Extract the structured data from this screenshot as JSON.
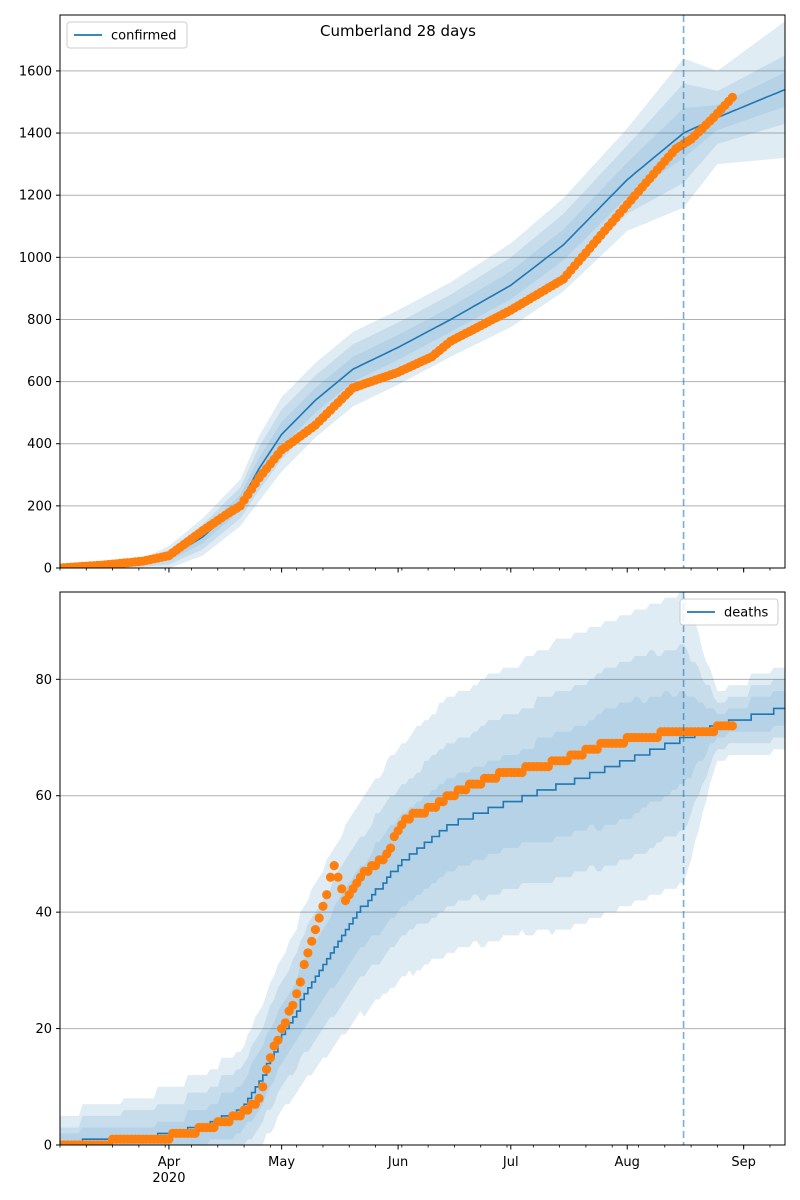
{
  "figure_title": "Cumberland 28 days",
  "colors": {
    "model_line": "#1f77b4",
    "observed_points": "#ff7f0e",
    "band": "#1f77b4",
    "grid": "#b0b0b0",
    "forecast_marker": "#1f77b4"
  },
  "x_axis": {
    "domain_start": "2020-03-03",
    "domain_end": "2020-09-12",
    "month_ticks": [
      {
        "date": "2020-04-01",
        "label": "Apr",
        "sublabel": "2020"
      },
      {
        "date": "2020-05-01",
        "label": "May",
        "sublabel": ""
      },
      {
        "date": "2020-06-01",
        "label": "Jun",
        "sublabel": ""
      },
      {
        "date": "2020-07-01",
        "label": "Jul",
        "sublabel": ""
      },
      {
        "date": "2020-08-01",
        "label": "Aug",
        "sublabel": ""
      },
      {
        "date": "2020-09-01",
        "label": "Sep",
        "sublabel": ""
      }
    ],
    "forecast_start": "2020-08-16"
  },
  "chart_data": [
    {
      "type": "line",
      "title": "Cumberland 28 days",
      "legend": "confirmed",
      "legend_position": "top-left",
      "grid": "horizontal",
      "ylim": [
        0,
        1780
      ],
      "yticks": [
        0,
        200,
        400,
        600,
        800,
        1000,
        1200,
        1400,
        1600
      ],
      "x_range": [
        "2020-03-03",
        "2020-09-12"
      ],
      "model_series": {
        "name": "confirmed",
        "x": [
          "2020-03-03",
          "2020-03-15",
          "2020-03-25",
          "2020-04-01",
          "2020-04-10",
          "2020-04-20",
          "2020-04-25",
          "2020-05-01",
          "2020-05-10",
          "2020-05-20",
          "2020-06-01",
          "2020-06-15",
          "2020-07-01",
          "2020-07-15",
          "2020-08-01",
          "2020-08-16",
          "2020-08-25",
          "2020-09-12"
        ],
        "values": [
          0,
          3,
          15,
          35,
          100,
          210,
          320,
          430,
          540,
          640,
          710,
          800,
          910,
          1040,
          1250,
          1400,
          1450,
          1540
        ],
        "band_half_widths": [
          [
            1,
            2,
            3
          ],
          [
            2,
            4,
            6
          ],
          [
            5,
            10,
            15
          ],
          [
            12,
            24,
            36
          ],
          [
            20,
            40,
            60
          ],
          [
            25,
            50,
            75
          ],
          [
            35,
            70,
            105
          ],
          [
            40,
            80,
            120
          ],
          [
            40,
            80,
            120
          ],
          [
            40,
            80,
            120
          ],
          [
            40,
            80,
            120
          ],
          [
            40,
            80,
            120
          ],
          [
            45,
            90,
            135
          ],
          [
            50,
            100,
            150
          ],
          [
            55,
            110,
            165
          ],
          [
            80,
            160,
            240
          ],
          [
            40,
            85,
            150
          ],
          [
            55,
            110,
            220
          ]
        ]
      },
      "observed": {
        "x": [
          "2020-03-03",
          "2020-03-15",
          "2020-03-25",
          "2020-04-01",
          "2020-04-10",
          "2020-04-16",
          "2020-04-20",
          "2020-04-25",
          "2020-05-01",
          "2020-05-10",
          "2020-05-15",
          "2020-05-20",
          "2020-06-01",
          "2020-06-10",
          "2020-06-15",
          "2020-07-01",
          "2020-07-15",
          "2020-08-01",
          "2020-08-06",
          "2020-08-14",
          "2020-08-18",
          "2020-08-24",
          "2020-08-29"
        ],
        "values": [
          0,
          10,
          22,
          40,
          120,
          170,
          200,
          290,
          380,
          460,
          520,
          580,
          630,
          680,
          730,
          830,
          930,
          1170,
          1240,
          1350,
          1380,
          1450,
          1515
        ]
      }
    },
    {
      "type": "line",
      "legend": "deaths",
      "legend_position": "top-right",
      "grid": "horizontal",
      "ylim": [
        0,
        95
      ],
      "yticks": [
        0,
        20,
        40,
        60,
        80
      ],
      "x_range": [
        "2020-03-03",
        "2020-09-12"
      ],
      "model_series": {
        "name": "deaths",
        "x": [
          "2020-03-03",
          "2020-03-15",
          "2020-03-25",
          "2020-04-01",
          "2020-04-10",
          "2020-04-20",
          "2020-04-25",
          "2020-05-01",
          "2020-05-10",
          "2020-05-20",
          "2020-06-01",
          "2020-06-15",
          "2020-07-01",
          "2020-07-15",
          "2020-08-01",
          "2020-08-16",
          "2020-08-25",
          "2020-09-12"
        ],
        "values": [
          0,
          1,
          1,
          2,
          3,
          6,
          11,
          19,
          29,
          39,
          48,
          55,
          59,
          62,
          66,
          70,
          72,
          75
        ],
        "band_half_widths": [
          [
            2,
            3,
            5
          ],
          [
            2,
            4,
            6
          ],
          [
            2,
            5,
            7
          ],
          [
            2,
            5,
            8
          ],
          [
            3,
            6,
            9
          ],
          [
            4,
            7,
            10
          ],
          [
            5,
            8,
            12
          ],
          [
            5,
            9,
            13
          ],
          [
            6,
            11,
            16
          ],
          [
            7,
            12,
            18
          ],
          [
            8,
            13,
            20
          ],
          [
            8,
            14,
            22
          ],
          [
            8,
            15,
            23
          ],
          [
            9,
            16,
            25
          ],
          [
            10,
            17,
            25
          ],
          [
            8,
            16,
            25
          ],
          [
            2,
            4,
            6
          ],
          [
            3,
            5,
            7
          ]
        ]
      },
      "observed": {
        "x": [
          "2020-03-03",
          "2020-03-30",
          "2020-04-05",
          "2020-04-12",
          "2020-04-20",
          "2020-04-25",
          "2020-04-28",
          "2020-05-05",
          "2020-05-08",
          "2020-05-12",
          "2020-05-15",
          "2020-05-18",
          "2020-05-22",
          "2020-05-28",
          "2020-06-03",
          "2020-06-10",
          "2020-06-18",
          "2020-06-25",
          "2020-07-01",
          "2020-07-08",
          "2020-07-15",
          "2020-07-22",
          "2020-07-28",
          "2020-08-05",
          "2020-08-14",
          "2020-08-20",
          "2020-08-29"
        ],
        "values": [
          0,
          1,
          2,
          3,
          5,
          8,
          15,
          26,
          33,
          41,
          48,
          42,
          46,
          49,
          56,
          58,
          61,
          63,
          64,
          65,
          66,
          68,
          69,
          70,
          71,
          71,
          72
        ]
      }
    }
  ]
}
